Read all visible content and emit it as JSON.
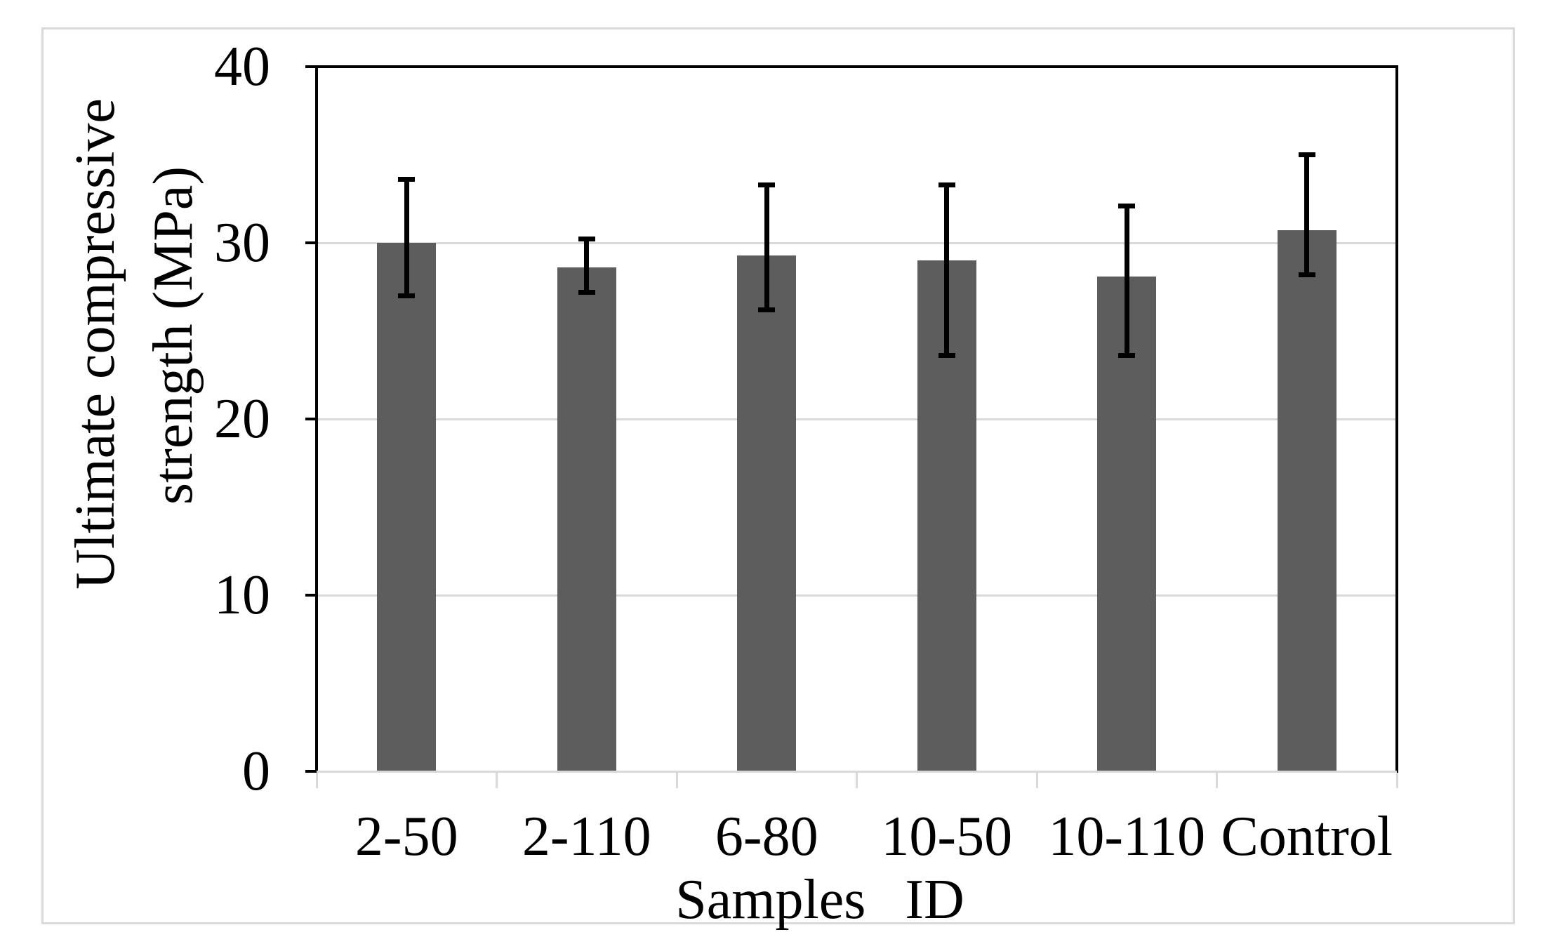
{
  "figure": {
    "background": "#ffffff",
    "border_color": "#d9d9d9"
  },
  "chart_data": {
    "type": "bar",
    "title": "",
    "categories": [
      "2-50",
      "2-110",
      "6-80",
      "10-50",
      "10-110",
      "Control"
    ],
    "values": [
      30.0,
      28.6,
      29.3,
      29.0,
      28.1,
      30.7
    ],
    "error_bars": {
      "lower": [
        27.0,
        27.2,
        26.2,
        23.6,
        23.6,
        28.2
      ],
      "upper": [
        33.6,
        30.2,
        33.3,
        33.3,
        32.1,
        35.0
      ]
    },
    "xlabel": "Samples ID",
    "ylabel_line1": "Ultimate compressive",
    "ylabel_line2": "strength (MPa)",
    "ylim": [
      0,
      40
    ],
    "yticks": [
      0,
      10,
      20,
      30,
      40
    ],
    "grid": true,
    "legend": "none",
    "bar_color": "#5d5d5d",
    "gridline_color": "#d9d9d9",
    "axis_color": "#000000",
    "error_bar_color": "#000000",
    "tick_label_color": "#000000"
  }
}
